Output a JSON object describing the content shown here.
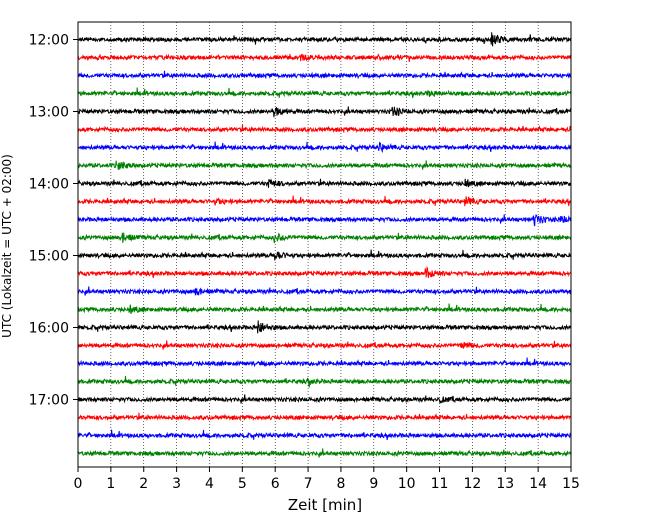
{
  "chart_data": {
    "type": "line",
    "title": "",
    "xlabel": "Zeit  [min]",
    "ylabel": "UTC (Lokalzeit = UTC + 02:00)",
    "xlim": [
      0,
      15
    ],
    "x_ticks": [
      "0",
      "1",
      "2",
      "3",
      "4",
      "5",
      "6",
      "7",
      "8",
      "9",
      "10",
      "11",
      "12",
      "13",
      "14",
      "15"
    ],
    "y_ticks": [
      "12:00",
      "13:00",
      "14:00",
      "15:00",
      "16:00",
      "17:00"
    ],
    "grid": "vertical-dotted",
    "trace_colors": [
      "#000000",
      "#ff0000",
      "#0000ff",
      "#008000"
    ],
    "traces": [
      {
        "start": "12:00",
        "events": [
          [
            12.6,
            6
          ]
        ]
      },
      {
        "start": "12:15",
        "events": [
          [
            6.8,
            2
          ]
        ]
      },
      {
        "start": "12:30",
        "events": []
      },
      {
        "start": "12:45",
        "events": [
          [
            10.7,
            2
          ]
        ]
      },
      {
        "start": "13:00",
        "events": [
          [
            6.0,
            4
          ],
          [
            9.6,
            4
          ]
        ]
      },
      {
        "start": "13:15",
        "events": []
      },
      {
        "start": "13:30",
        "events": [
          [
            9.2,
            3
          ]
        ]
      },
      {
        "start": "13:45",
        "events": [
          [
            1.2,
            4
          ]
        ]
      },
      {
        "start": "14:00",
        "events": [
          [
            5.8,
            4
          ],
          [
            11.8,
            3
          ]
        ]
      },
      {
        "start": "14:15",
        "events": [
          [
            11.8,
            4
          ],
          [
            4.2,
            2
          ]
        ]
      },
      {
        "start": "14:30",
        "events": [
          [
            13.9,
            5
          ],
          [
            14.7,
            3
          ]
        ]
      },
      {
        "start": "14:45",
        "events": [
          [
            1.4,
            4
          ],
          [
            6.0,
            4
          ]
        ]
      },
      {
        "start": "15:00",
        "events": [
          [
            6.0,
            4
          ]
        ]
      },
      {
        "start": "15:15",
        "events": [
          [
            10.6,
            5
          ]
        ]
      },
      {
        "start": "15:30",
        "events": [
          [
            3.6,
            3
          ]
        ]
      },
      {
        "start": "15:45",
        "events": [
          [
            1.6,
            3
          ]
        ]
      },
      {
        "start": "16:00",
        "events": [
          [
            5.5,
            6
          ]
        ]
      },
      {
        "start": "16:15",
        "events": [
          [
            11.7,
            3
          ]
        ]
      },
      {
        "start": "16:30",
        "events": []
      },
      {
        "start": "16:45",
        "events": [
          [
            7.0,
            2
          ]
        ]
      },
      {
        "start": "17:00",
        "events": [
          [
            11.0,
            2
          ]
        ]
      },
      {
        "start": "17:15",
        "events": []
      },
      {
        "start": "17:30",
        "events": []
      },
      {
        "start": "17:45",
        "events": []
      }
    ]
  }
}
